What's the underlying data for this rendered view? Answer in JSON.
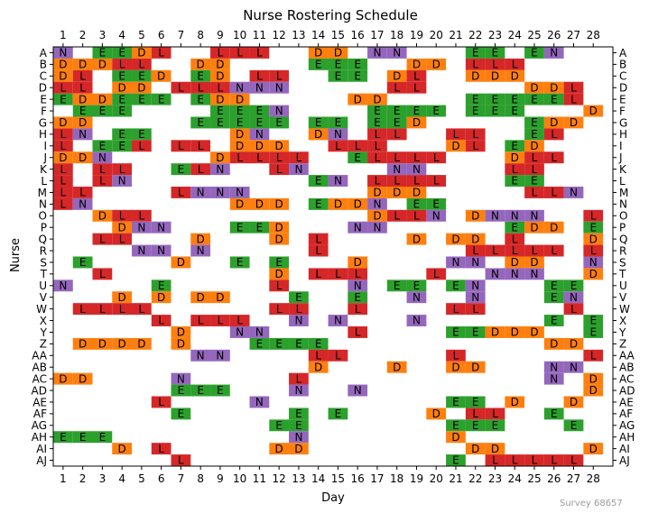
{
  "chart_data": {
    "type": "heatmap",
    "title": "Nurse Rostering Schedule",
    "xlabel": "Day",
    "ylabel": "Nurse",
    "days": [
      1,
      2,
      3,
      4,
      5,
      6,
      7,
      8,
      9,
      10,
      11,
      12,
      13,
      14,
      15,
      16,
      17,
      18,
      19,
      20,
      21,
      22,
      23,
      24,
      25,
      26,
      27,
      28
    ],
    "nurses": [
      "A",
      "B",
      "C",
      "D",
      "E",
      "F",
      "G",
      "H",
      "I",
      "J",
      "K",
      "L",
      "M",
      "N",
      "O",
      "P",
      "Q",
      "R",
      "S",
      "T",
      "U",
      "V",
      "W",
      "X",
      "Y",
      "Z",
      "AA",
      "AB",
      "AC",
      "AD",
      "AE",
      "AF",
      "AG",
      "AH",
      "AI",
      "AJ"
    ],
    "colors": {
      "D": "#ff7f0e",
      "E": "#2ca02c",
      "L": "#d62728",
      "N": "#9467bd"
    },
    "grid": false,
    "schedule": {
      "A": {
        "1": "N",
        "3": "E",
        "4": "E",
        "5": "D",
        "6": "L",
        "9": "L",
        "10": "L",
        "11": "L",
        "14": "D",
        "15": "D",
        "17": "N",
        "18": "N",
        "22": "E",
        "23": "E",
        "25": "E",
        "26": "N"
      },
      "B": {
        "1": "D",
        "2": "D",
        "3": "D",
        "4": "L",
        "5": "L",
        "8": "D",
        "9": "D",
        "14": "E",
        "15": "E",
        "16": "E",
        "19": "D",
        "20": "D",
        "22": "L",
        "23": "L",
        "24": "L"
      },
      "C": {
        "1": "D",
        "2": "L",
        "4": "E",
        "5": "E",
        "6": "D",
        "8": "E",
        "9": "D",
        "11": "L",
        "12": "L",
        "15": "E",
        "16": "E",
        "18": "D",
        "19": "L",
        "22": "D",
        "23": "D",
        "24": "D"
      },
      "D": {
        "1": "L",
        "2": "L",
        "4": "D",
        "5": "D",
        "7": "L",
        "8": "L",
        "9": "L",
        "10": "N",
        "11": "N",
        "12": "N",
        "18": "L",
        "19": "L",
        "25": "D",
        "26": "D",
        "27": "L"
      },
      "E": {
        "1": "E",
        "2": "D",
        "3": "D",
        "4": "E",
        "5": "E",
        "6": "E",
        "8": "E",
        "9": "D",
        "10": "D",
        "16": "D",
        "17": "D",
        "22": "E",
        "23": "E",
        "24": "E",
        "25": "E",
        "26": "E",
        "27": "L"
      },
      "F": {
        "2": "E",
        "3": "E",
        "4": "E",
        "9": "E",
        "10": "E",
        "11": "E",
        "12": "N",
        "17": "E",
        "18": "E",
        "19": "E",
        "20": "E",
        "22": "E",
        "23": "E",
        "24": "E",
        "28": "D"
      },
      "G": {
        "1": "D",
        "2": "D",
        "8": "E",
        "9": "E",
        "10": "E",
        "11": "E",
        "12": "E",
        "14": "E",
        "15": "E",
        "17": "E",
        "18": "E",
        "19": "D",
        "25": "E",
        "26": "D",
        "27": "D"
      },
      "H": {
        "1": "L",
        "2": "N",
        "4": "E",
        "5": "E",
        "10": "D",
        "11": "N",
        "14": "D",
        "15": "N",
        "17": "L",
        "18": "L",
        "21": "L",
        "22": "L",
        "25": "E",
        "26": "L"
      },
      "I": {
        "1": "L",
        "3": "E",
        "4": "E",
        "5": "L",
        "7": "L",
        "8": "L",
        "10": "D",
        "11": "D",
        "12": "D",
        "15": "L",
        "16": "L",
        "17": "L",
        "21": "D",
        "22": "L",
        "24": "E",
        "25": "D"
      },
      "J": {
        "1": "D",
        "2": "D",
        "3": "N",
        "9": "D",
        "10": "L",
        "11": "L",
        "12": "L",
        "13": "L",
        "16": "E",
        "17": "L",
        "18": "L",
        "19": "L",
        "20": "L",
        "24": "D",
        "25": "L",
        "26": "L"
      },
      "K": {
        "1": "L",
        "3": "L",
        "4": "L",
        "7": "E",
        "8": "L",
        "9": "N",
        "12": "L",
        "13": "N",
        "18": "N",
        "19": "N",
        "24": "L",
        "25": "L"
      },
      "L": {
        "1": "L",
        "3": "L",
        "4": "N",
        "14": "E",
        "15": "N",
        "17": "L",
        "18": "L",
        "19": "L",
        "20": "L",
        "24": "E",
        "25": "E"
      },
      "M": {
        "1": "L",
        "2": "L",
        "7": "L",
        "8": "N",
        "9": "N",
        "10": "N",
        "17": "D",
        "18": "D",
        "19": "D",
        "25": "L",
        "26": "L",
        "27": "N"
      },
      "N": {
        "1": "L",
        "2": "N",
        "10": "D",
        "11": "D",
        "12": "D",
        "14": "E",
        "15": "D",
        "16": "D",
        "17": "N",
        "19": "E",
        "20": "E"
      },
      "O": {
        "3": "D",
        "4": "L",
        "5": "L",
        "17": "D",
        "18": "L",
        "19": "L",
        "20": "N",
        "22": "D",
        "23": "N",
        "24": "N",
        "25": "N",
        "28": "L"
      },
      "P": {
        "4": "D",
        "5": "N",
        "6": "N",
        "10": "E",
        "11": "E",
        "12": "D",
        "16": "N",
        "17": "N",
        "24": "E",
        "25": "D",
        "26": "D",
        "28": "E"
      },
      "Q": {
        "3": "L",
        "4": "L",
        "8": "D",
        "12": "D",
        "14": "L",
        "19": "D",
        "21": "D",
        "22": "D",
        "24": "L",
        "28": "D"
      },
      "R": {
        "5": "N",
        "6": "N",
        "8": "N",
        "14": "L",
        "22": "L",
        "23": "L",
        "24": "L",
        "25": "L",
        "26": "L",
        "28": "L"
      },
      "S": {
        "2": "E",
        "7": "D",
        "10": "E",
        "12": "E",
        "16": "D",
        "21": "N",
        "22": "N",
        "24": "D",
        "25": "D",
        "28": "N"
      },
      "T": {
        "3": "L",
        "12": "D",
        "14": "L",
        "15": "L",
        "16": "L",
        "20": "L",
        "23": "N",
        "24": "N",
        "25": "N",
        "28": "D"
      },
      "U": {
        "1": "N",
        "6": "E",
        "12": "L",
        "16": "N",
        "18": "E",
        "19": "E",
        "21": "E",
        "22": "N",
        "26": "E",
        "27": "E"
      },
      "V": {
        "4": "D",
        "6": "D",
        "8": "D",
        "9": "D",
        "13": "E",
        "16": "E",
        "19": "N",
        "22": "N",
        "26": "E",
        "27": "N"
      },
      "W": {
        "2": "L",
        "3": "L",
        "4": "L",
        "5": "L",
        "12": "L",
        "13": "L",
        "16": "L",
        "21": "L",
        "22": "L",
        "27": "L"
      },
      "X": {
        "6": "L",
        "8": "L",
        "9": "L",
        "10": "L",
        "13": "N",
        "15": "N",
        "19": "N",
        "26": "E",
        "28": "E"
      },
      "Y": {
        "7": "D",
        "10": "N",
        "11": "N",
        "16": "L",
        "21": "E",
        "22": "E",
        "23": "D",
        "24": "D",
        "25": "D",
        "28": "E"
      },
      "Z": {
        "2": "D",
        "3": "D",
        "4": "D",
        "5": "D",
        "7": "D",
        "11": "E",
        "12": "E",
        "13": "E",
        "14": "E",
        "26": "D",
        "27": "D"
      },
      "AA": {
        "8": "N",
        "9": "N",
        "14": "L",
        "15": "L",
        "21": "L",
        "28": "L"
      },
      "AB": {
        "14": "D",
        "18": "D",
        "21": "D",
        "22": "D",
        "26": "N",
        "27": "N"
      },
      "AC": {
        "1": "D",
        "2": "D",
        "7": "N",
        "13": "L",
        "26": "N",
        "28": "D"
      },
      "AD": {
        "7": "E",
        "8": "E",
        "9": "E",
        "13": "N",
        "16": "N",
        "28": "D"
      },
      "AE": {
        "6": "L",
        "11": "N",
        "21": "E",
        "22": "E",
        "24": "D",
        "27": "D"
      },
      "AF": {
        "7": "E",
        "13": "E",
        "15": "E",
        "20": "D",
        "22": "L",
        "23": "L",
        "26": "E"
      },
      "AG": {
        "12": "E",
        "13": "E",
        "21": "E",
        "22": "E",
        "23": "E",
        "27": "E"
      },
      "AH": {
        "1": "E",
        "2": "E",
        "3": "E",
        "13": "N",
        "21": "D"
      },
      "AI": {
        "4": "D",
        "6": "L",
        "12": "D",
        "13": "D",
        "22": "D",
        "23": "D",
        "28": "D"
      },
      "AJ": {
        "7": "L",
        "21": "E",
        "23": "L",
        "24": "L",
        "25": "L",
        "26": "L",
        "27": "L"
      }
    }
  },
  "watermark": "Survey 68657"
}
